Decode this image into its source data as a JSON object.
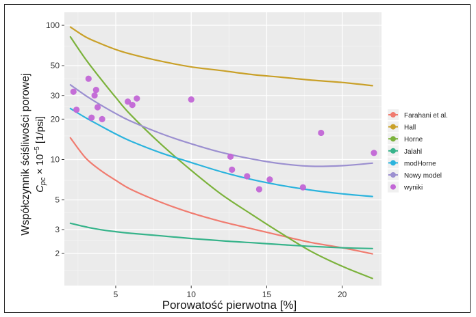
{
  "chart_data": {
    "type": "scatter",
    "xlabel": "Porowatość pierwotna [%]",
    "ylabel_line1": "Współczynnik ściśliwości porowej",
    "ylabel_line2_prefix": "C",
    "ylabel_line2_sub": "pc",
    "ylabel_line2_suffix": " × 10",
    "ylabel_line2_sup": "−5",
    "ylabel_line2_unit": " [1/psi]",
    "x_scale": "linear",
    "y_scale": "log",
    "xlim": [
      1.6,
      22.6
    ],
    "ylim": [
      1.15,
      125
    ],
    "x_ticks": [
      5,
      10,
      15,
      20
    ],
    "y_ticks": [
      2,
      3,
      5,
      10,
      20,
      30,
      50,
      100
    ],
    "grid": true,
    "legend_position": "right",
    "series": [
      {
        "name": "Farahani et al.",
        "kind": "line",
        "color": "#f07b6f",
        "x": [
          2,
          3,
          4,
          5,
          6,
          8,
          10,
          12,
          14,
          16,
          18,
          20,
          22
        ],
        "y": [
          14.5,
          10.3,
          8.3,
          7.0,
          6.0,
          4.8,
          4.0,
          3.45,
          3.05,
          2.7,
          2.4,
          2.2,
          1.98
        ]
      },
      {
        "name": "Hall",
        "kind": "line",
        "color": "#c9a028",
        "x": [
          2,
          3,
          4,
          5,
          6,
          8,
          10,
          12,
          14,
          16,
          18,
          20,
          22
        ],
        "y": [
          97,
          82,
          73,
          66,
          61,
          54,
          49,
          46,
          43,
          41,
          39,
          37.5,
          35.5
        ]
      },
      {
        "name": "Horne",
        "kind": "line",
        "color": "#7bb23b",
        "x": [
          2,
          3,
          4,
          5,
          6,
          8,
          10,
          12,
          14,
          16,
          18,
          20,
          22
        ],
        "y": [
          82,
          56,
          40,
          29,
          21.5,
          13,
          8.3,
          5.5,
          3.9,
          2.8,
          2.05,
          1.6,
          1.3
        ]
      },
      {
        "name": "Jalahl",
        "kind": "line",
        "color": "#36b38a",
        "x": [
          2,
          3,
          4,
          5,
          6,
          8,
          10,
          12,
          14,
          16,
          18,
          20,
          22
        ],
        "y": [
          3.35,
          3.15,
          3.0,
          2.9,
          2.82,
          2.7,
          2.58,
          2.48,
          2.4,
          2.32,
          2.25,
          2.2,
          2.17
        ]
      },
      {
        "name": "modHorne",
        "kind": "line",
        "color": "#2ab3dd",
        "x": [
          2,
          3,
          4,
          5,
          6,
          8,
          10,
          12,
          14,
          16,
          18,
          20,
          22
        ],
        "y": [
          24,
          20.5,
          17.8,
          15.5,
          13.7,
          11.2,
          9.5,
          8.1,
          7.1,
          6.4,
          5.9,
          5.55,
          5.3
        ]
      },
      {
        "name": "Nowy model",
        "kind": "line",
        "color": "#9b8fd0",
        "x": [
          2,
          3,
          4,
          5,
          6,
          8,
          10,
          12,
          14,
          16,
          18,
          20,
          22
        ],
        "y": [
          36,
          30,
          25.5,
          22,
          19.3,
          15.6,
          13.1,
          11.3,
          10.1,
          9.3,
          8.9,
          9.0,
          9.4
        ]
      },
      {
        "name": "wyniki",
        "kind": "points",
        "color": "#c266d6",
        "x": [
          2.2,
          2.4,
          3.2,
          3.4,
          3.6,
          3.7,
          3.8,
          4.1,
          5.8,
          6.1,
          6.4,
          10.0,
          12.6,
          12.7,
          13.7,
          14.5,
          15.2,
          17.4,
          18.6,
          22.1
        ],
        "y": [
          32,
          23.5,
          40,
          20.5,
          30,
          33,
          24.5,
          20,
          27,
          25.5,
          28.5,
          28,
          10.5,
          8.4,
          7.5,
          6,
          7.1,
          6.2,
          15.8,
          11.2
        ]
      }
    ]
  }
}
